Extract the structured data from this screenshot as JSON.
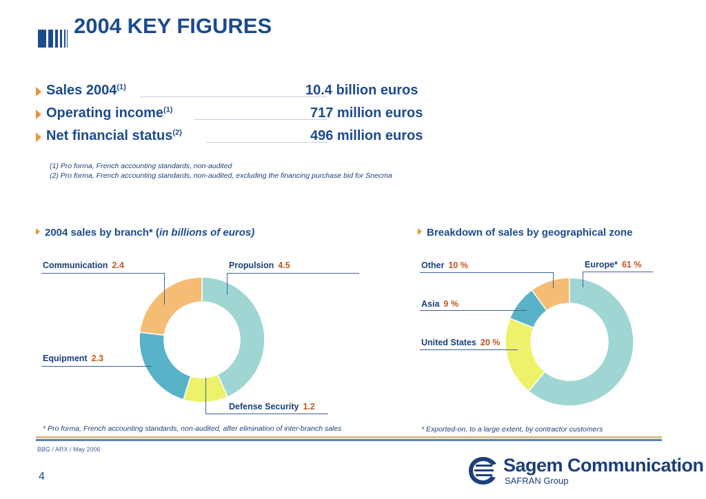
{
  "title": "2004 KEY FIGURES",
  "key_figures": [
    {
      "label": "Sales 2004",
      "note_ref": "(1)",
      "value": "10.4 billion euros"
    },
    {
      "label": "Operating income",
      "note_ref": "(1)",
      "value": "717 million euros"
    },
    {
      "label": "Net financial status",
      "note_ref": "(2)",
      "value": "496 million euros"
    }
  ],
  "notes": [
    "(1) Pro forma, French accounting standards, non-audited",
    "(2) Pro forma, French accounting standards, non-audited, excluding the financing purchase bid for Snecma"
  ],
  "branch_section": {
    "heading": "2004 sales by branch* (",
    "heading_italic": "in billions of euros)",
    "footnote": "* Pro forma, French accounting standards, non-audited, after elimination of inter-branch sales"
  },
  "geo_section": {
    "heading": "Breakdown of sales by geographical zone",
    "footnote": "* Exported-on, to a large extent, by contractor customers"
  },
  "chart_data": [
    {
      "type": "pie",
      "style": "donut",
      "categories": [
        "Propulsion",
        "Defense Security",
        "Equipment",
        "Communication"
      ],
      "values": [
        4.5,
        1.2,
        2.3,
        2.4
      ],
      "value_labels": [
        "4.5",
        "1.2",
        "2.3",
        "2.4"
      ],
      "colors": [
        "#9fd6d3",
        "#eef26a",
        "#58b3c9",
        "#f5bd73"
      ]
    },
    {
      "type": "pie",
      "style": "donut",
      "categories": [
        "Europe*",
        "United States",
        "Asia",
        "Other"
      ],
      "values": [
        61,
        20,
        9,
        10
      ],
      "value_labels": [
        "61 %",
        "20 %",
        "9 %",
        "10 %"
      ],
      "colors": [
        "#9fd6d3",
        "#eef26a",
        "#58b3c9",
        "#f5bd73"
      ]
    }
  ],
  "footer": {
    "meta": "BBG / ARX / May 2006",
    "page_number": "4",
    "logo_name": "Sagem Communication",
    "logo_group": "SAFRAN Group"
  },
  "colors": {
    "accent_orange": "#e8963a",
    "title_blue": "#1c4b8c",
    "value_red": "#c0551e"
  }
}
